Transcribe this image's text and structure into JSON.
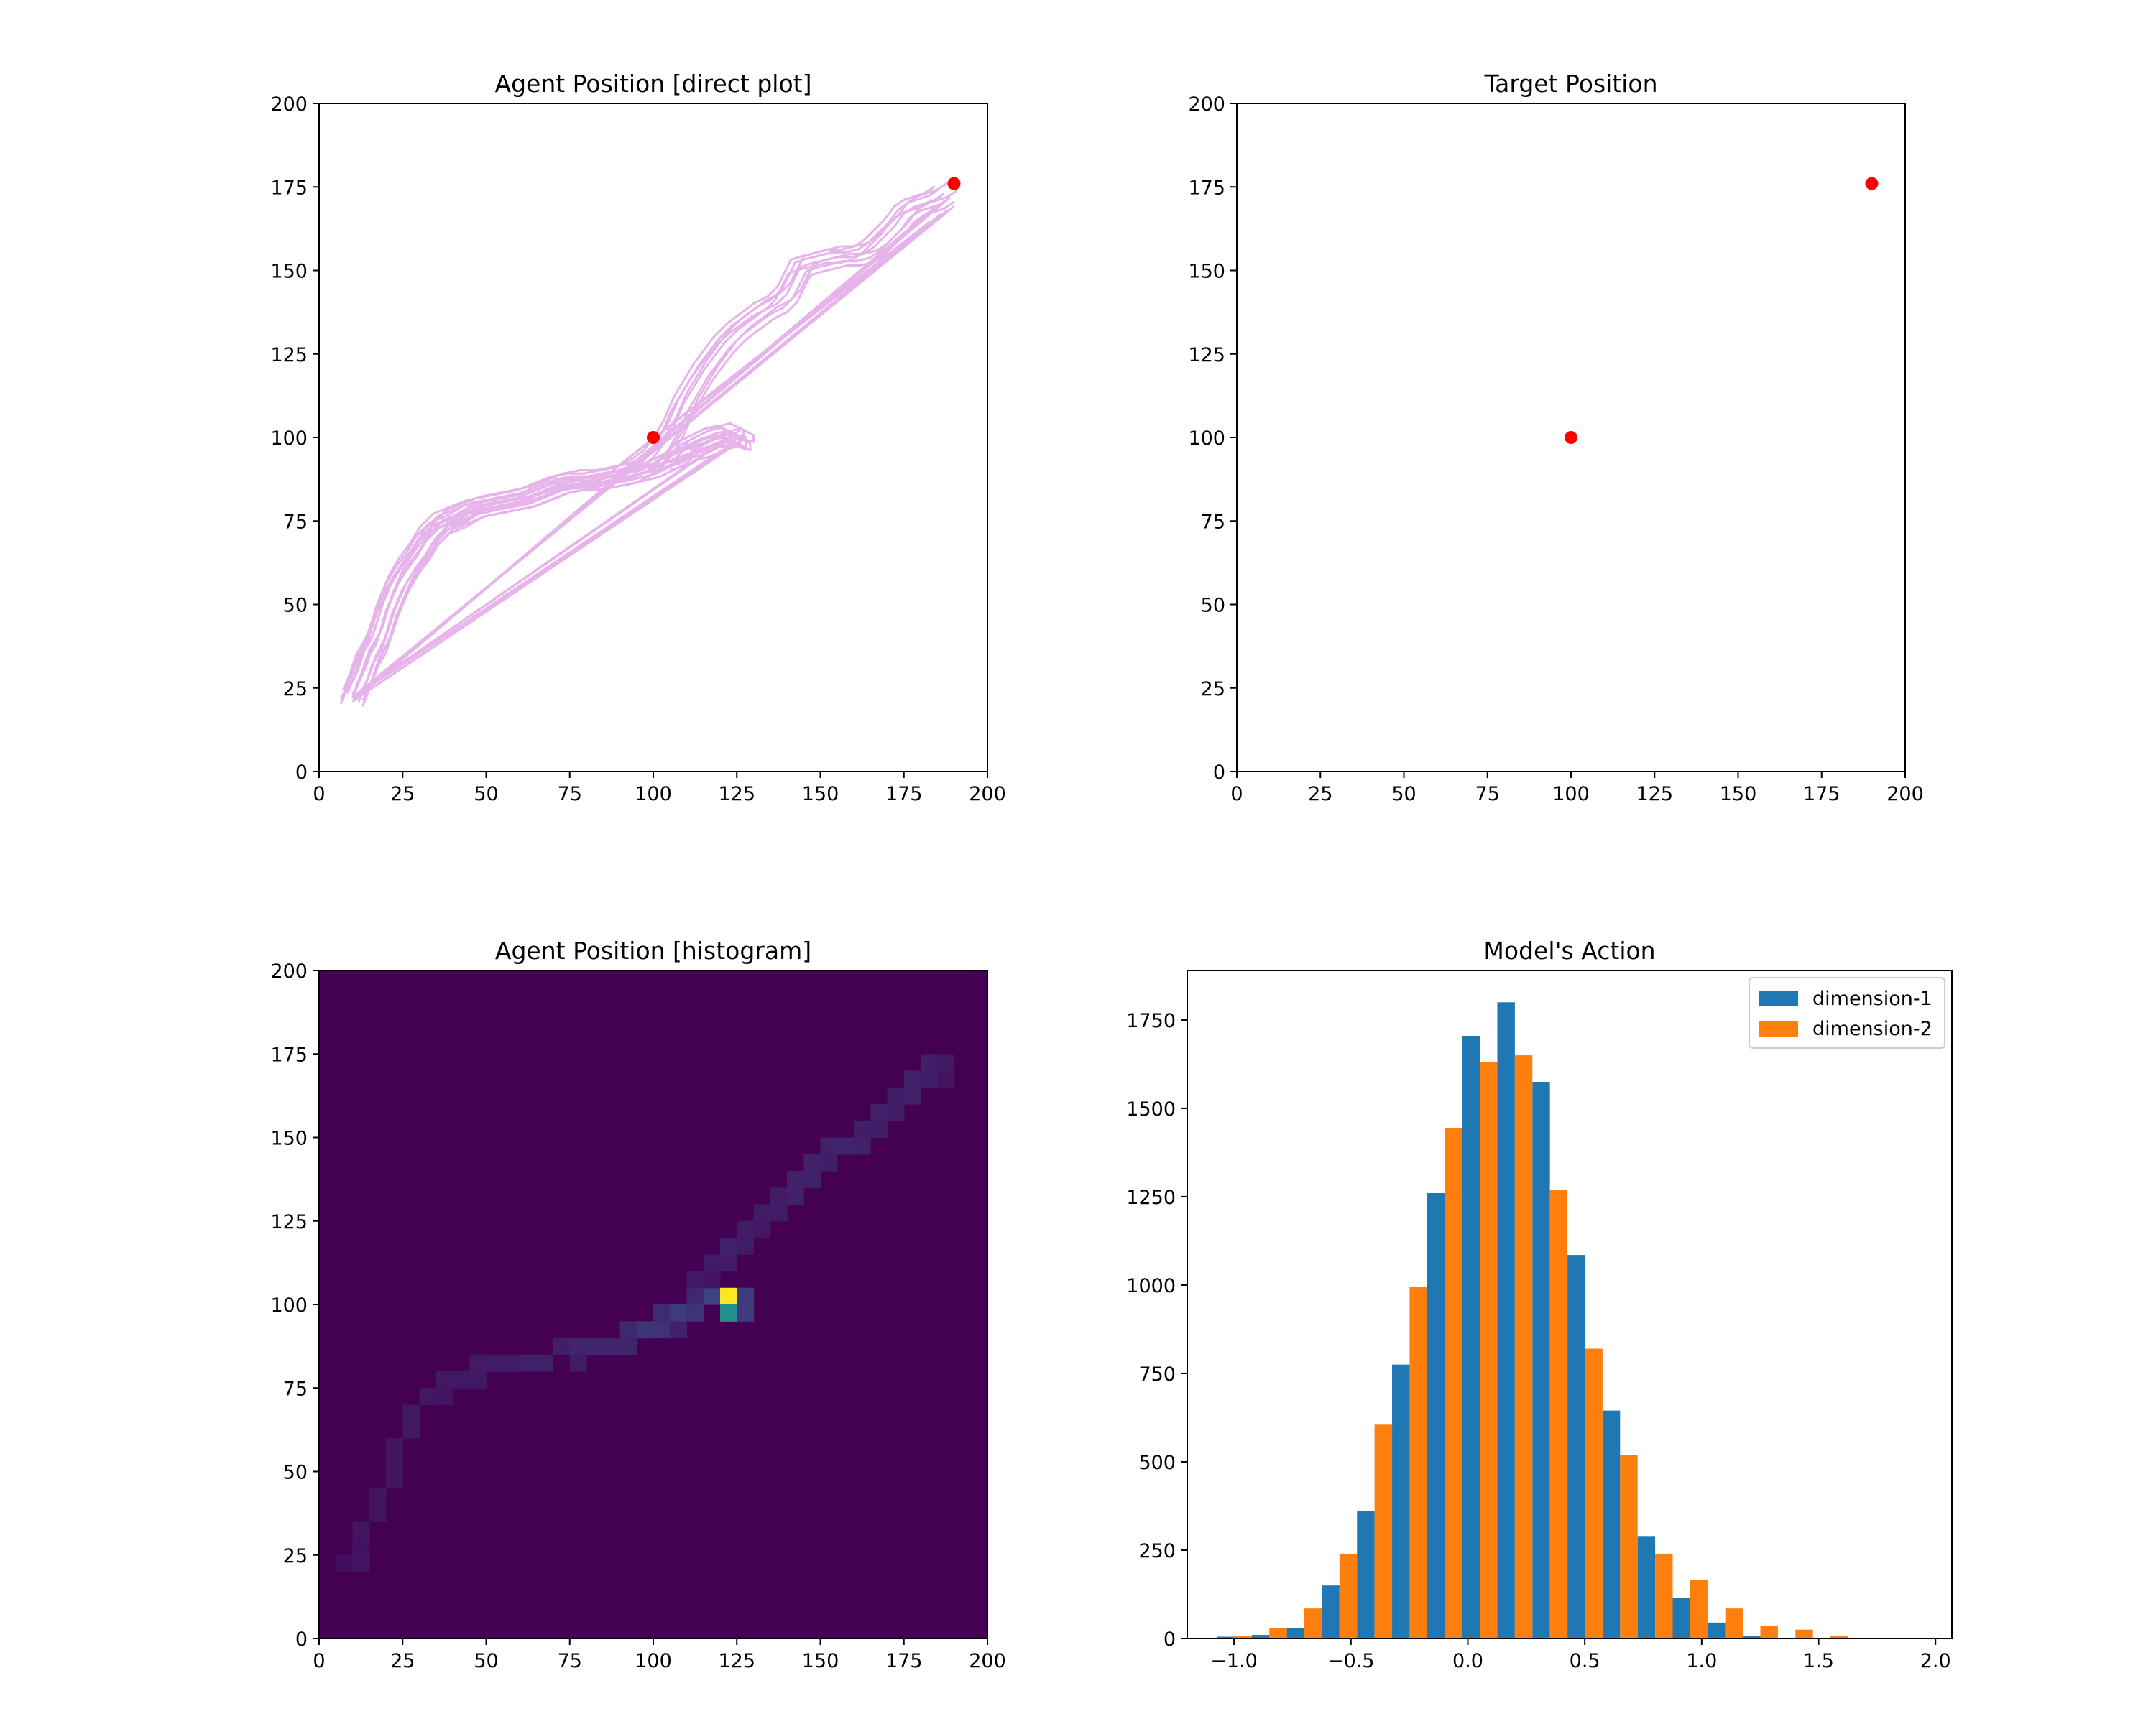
{
  "chart_data": [
    {
      "id": "agent-direct",
      "type": "line",
      "title": "Agent Position [direct plot]",
      "xlim": [
        0,
        200
      ],
      "ylim": [
        0,
        200
      ],
      "xticks": [
        0,
        25,
        50,
        75,
        100,
        125,
        150,
        175,
        200
      ],
      "yticks": [
        0,
        25,
        50,
        75,
        100,
        125,
        150,
        175,
        200
      ],
      "trajectory_color": "#e6b3ea",
      "marker_color": "#ff0000",
      "trajectory_upper": [
        [
          10,
          22
        ],
        [
          12,
          27
        ],
        [
          14,
          33
        ],
        [
          17,
          38
        ],
        [
          19,
          44
        ],
        [
          21,
          50
        ],
        [
          24,
          57
        ],
        [
          27,
          62
        ],
        [
          30,
          66
        ],
        [
          33,
          71
        ],
        [
          37,
          75
        ],
        [
          42,
          77
        ],
        [
          47,
          79
        ],
        [
          52,
          80
        ],
        [
          57,
          81
        ],
        [
          62,
          82
        ],
        [
          67,
          84
        ],
        [
          72,
          86
        ],
        [
          77,
          87
        ],
        [
          82,
          87
        ],
        [
          87,
          88
        ],
        [
          92,
          89
        ],
        [
          96,
          91
        ],
        [
          100,
          94
        ],
        [
          103,
          98
        ],
        [
          106,
          103
        ],
        [
          109,
          110
        ],
        [
          112,
          115
        ],
        [
          115,
          120
        ],
        [
          118,
          124
        ],
        [
          121,
          128
        ],
        [
          125,
          132
        ],
        [
          129,
          135
        ],
        [
          133,
          138
        ],
        [
          137,
          140
        ],
        [
          140,
          143
        ],
        [
          142,
          147
        ],
        [
          144,
          151
        ],
        [
          147,
          152
        ],
        [
          151,
          153
        ],
        [
          155,
          154
        ],
        [
          159,
          154
        ],
        [
          163,
          155
        ],
        [
          166,
          157
        ],
        [
          169,
          160
        ],
        [
          172,
          163
        ],
        [
          175,
          167
        ],
        [
          178,
          169
        ],
        [
          181,
          170
        ],
        [
          184,
          171
        ],
        [
          187,
          173
        ]
      ],
      "trajectory_lower": [
        [
          10,
          23
        ],
        [
          13,
          29
        ],
        [
          15,
          35
        ],
        [
          18,
          41
        ],
        [
          20,
          48
        ],
        [
          23,
          55
        ],
        [
          26,
          60
        ],
        [
          29,
          64
        ],
        [
          32,
          69
        ],
        [
          36,
          73
        ],
        [
          41,
          75
        ],
        [
          46,
          78
        ],
        [
          51,
          79
        ],
        [
          56,
          80
        ],
        [
          61,
          81
        ],
        [
          66,
          83
        ],
        [
          71,
          85
        ],
        [
          76,
          86
        ],
        [
          81,
          86
        ],
        [
          86,
          87
        ],
        [
          91,
          88
        ],
        [
          95,
          89
        ],
        [
          99,
          90
        ],
        [
          103,
          92
        ],
        [
          107,
          94
        ],
        [
          110,
          97
        ],
        [
          114,
          99
        ],
        [
          118,
          101
        ],
        [
          122,
          102
        ],
        [
          126,
          100
        ],
        [
          126,
          98
        ],
        [
          122,
          99
        ],
        [
          118,
          98
        ],
        [
          114,
          96
        ],
        [
          110,
          95
        ],
        [
          106,
          93
        ],
        [
          102,
          92
        ]
      ],
      "returns": [
        [
          [
            126,
            99
          ],
          [
            10,
            21
          ]
        ],
        [
          [
            124,
            101
          ],
          [
            11,
            23
          ]
        ],
        [
          [
            122,
            97
          ],
          [
            10,
            22
          ]
        ],
        [
          [
            186,
            170
          ],
          [
            10,
            21
          ]
        ],
        [
          [
            188,
            168
          ],
          [
            11,
            23
          ]
        ],
        [
          [
            185,
            166
          ],
          [
            80,
            84
          ]
        ]
      ],
      "markers": [
        [
          100,
          100
        ],
        [
          190,
          176
        ]
      ]
    },
    {
      "id": "target",
      "type": "scatter",
      "title": "Target Position",
      "xlim": [
        0,
        200
      ],
      "ylim": [
        0,
        200
      ],
      "xticks": [
        0,
        25,
        50,
        75,
        100,
        125,
        150,
        175,
        200
      ],
      "yticks": [
        0,
        25,
        50,
        75,
        100,
        125,
        150,
        175,
        200
      ],
      "marker_color": "#ff0000",
      "points": [
        [
          100,
          100
        ],
        [
          190,
          176
        ]
      ]
    },
    {
      "id": "agent-hist",
      "type": "heatmap",
      "title": "Agent Position [histogram]",
      "xlim": [
        0,
        200
      ],
      "ylim": [
        0,
        200
      ],
      "xticks": [
        0,
        25,
        50,
        75,
        100,
        125,
        150,
        175,
        200
      ],
      "yticks": [
        0,
        25,
        50,
        75,
        100,
        125,
        150,
        175,
        200
      ],
      "bin_size": 5,
      "background_color": "#440154",
      "bins": [
        [
          5,
          20,
          0.04
        ],
        [
          10,
          20,
          0.06
        ],
        [
          10,
          25,
          0.05
        ],
        [
          10,
          30,
          0.06
        ],
        [
          15,
          35,
          0.06
        ],
        [
          15,
          40,
          0.06
        ],
        [
          20,
          45,
          0.06
        ],
        [
          20,
          50,
          0.06
        ],
        [
          20,
          55,
          0.06
        ],
        [
          25,
          60,
          0.07
        ],
        [
          25,
          65,
          0.07
        ],
        [
          30,
          70,
          0.07
        ],
        [
          35,
          70,
          0.06
        ],
        [
          35,
          75,
          0.07
        ],
        [
          40,
          75,
          0.07
        ],
        [
          45,
          75,
          0.07
        ],
        [
          45,
          80,
          0.08
        ],
        [
          50,
          80,
          0.08
        ],
        [
          55,
          80,
          0.08
        ],
        [
          60,
          80,
          0.1
        ],
        [
          65,
          80,
          0.1
        ],
        [
          70,
          85,
          0.09
        ],
        [
          75,
          80,
          0.08
        ],
        [
          75,
          85,
          0.11
        ],
        [
          80,
          85,
          0.11
        ],
        [
          85,
          85,
          0.11
        ],
        [
          90,
          85,
          0.11
        ],
        [
          90,
          90,
          0.12
        ],
        [
          95,
          90,
          0.16
        ],
        [
          100,
          90,
          0.15
        ],
        [
          100,
          95,
          0.13
        ],
        [
          105,
          95,
          0.18
        ],
        [
          110,
          95,
          0.15
        ],
        [
          105,
          90,
          0.1
        ],
        [
          110,
          100,
          0.12
        ],
        [
          115,
          100,
          0.2
        ],
        [
          120,
          100,
          1.0
        ],
        [
          120,
          95,
          0.5
        ],
        [
          125,
          95,
          0.18
        ],
        [
          125,
          100,
          0.18
        ],
        [
          110,
          105,
          0.07
        ],
        [
          115,
          105,
          0.06
        ],
        [
          115,
          110,
          0.08
        ],
        [
          120,
          110,
          0.08
        ],
        [
          120,
          115,
          0.1
        ],
        [
          125,
          115,
          0.08
        ],
        [
          125,
          120,
          0.08
        ],
        [
          130,
          120,
          0.07
        ],
        [
          130,
          125,
          0.08
        ],
        [
          135,
          125,
          0.08
        ],
        [
          135,
          130,
          0.08
        ],
        [
          140,
          130,
          0.1
        ],
        [
          140,
          135,
          0.1
        ],
        [
          145,
          135,
          0.1
        ],
        [
          145,
          140,
          0.1
        ],
        [
          150,
          140,
          0.09
        ],
        [
          150,
          145,
          0.1
        ],
        [
          155,
          145,
          0.11
        ],
        [
          160,
          145,
          0.1
        ],
        [
          160,
          150,
          0.09
        ],
        [
          165,
          150,
          0.09
        ],
        [
          165,
          155,
          0.1
        ],
        [
          170,
          155,
          0.09
        ],
        [
          170,
          160,
          0.09
        ],
        [
          175,
          160,
          0.1
        ],
        [
          175,
          165,
          0.1
        ],
        [
          180,
          165,
          0.09
        ],
        [
          180,
          170,
          0.09
        ],
        [
          185,
          170,
          0.07
        ],
        [
          185,
          165,
          0.06
        ]
      ]
    },
    {
      "id": "actions",
      "type": "bar",
      "title": "Model's Action",
      "xlim": [
        -1.2,
        2.07
      ],
      "ylim": [
        0,
        1890
      ],
      "xticks": [
        -1.0,
        -0.5,
        0.0,
        0.5,
        1.0,
        1.5,
        2.0
      ],
      "xtick_labels": [
        "−1.0",
        "−0.5",
        "0.0",
        "0.5",
        "1.0",
        "1.5",
        "2.0"
      ],
      "yticks": [
        0,
        250,
        500,
        750,
        1000,
        1250,
        1500,
        1750
      ],
      "legend_position": "top-right",
      "bin_edges": [
        -1.074,
        -0.924,
        -0.774,
        -0.624,
        -0.474,
        -0.324,
        -0.174,
        -0.024,
        0.126,
        0.276,
        0.426,
        0.576,
        0.726,
        0.876,
        1.026,
        1.176,
        1.326,
        1.476,
        1.626,
        1.776,
        1.926
      ],
      "series": [
        {
          "name": "dimension-1",
          "color": "#1f77b4",
          "values": [
            5,
            10,
            30,
            150,
            360,
            775,
            1260,
            1705,
            1800,
            1575,
            1085,
            645,
            290,
            115,
            45,
            8,
            2,
            1,
            0,
            1
          ]
        },
        {
          "name": "dimension-2",
          "color": "#ff7f0e",
          "values": [
            8,
            30,
            85,
            240,
            605,
            995,
            1445,
            1630,
            1650,
            1270,
            820,
            520,
            240,
            165,
            85,
            35,
            25,
            8,
            2,
            0
          ]
        }
      ]
    }
  ]
}
